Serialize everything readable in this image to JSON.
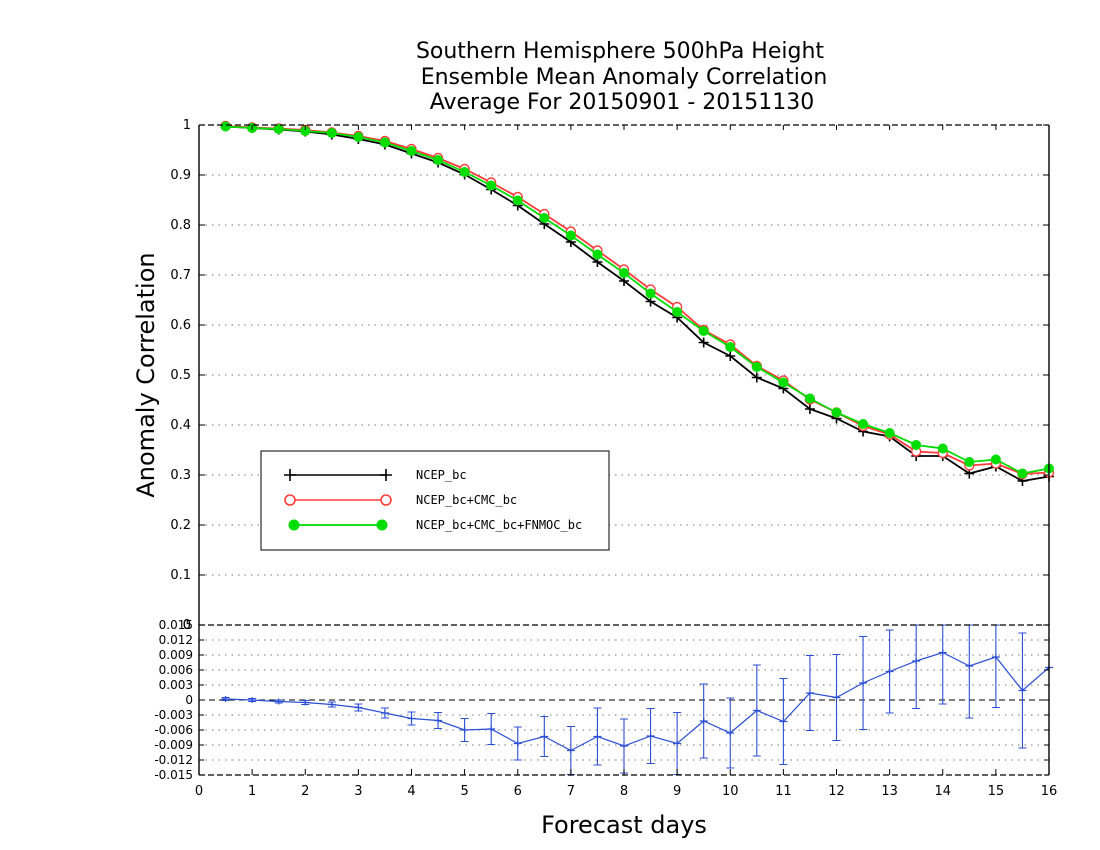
{
  "chart_data": [
    {
      "type": "line",
      "title": [
        "Southern Hemisphere 500hPa Height",
        "Ensemble Mean Anomaly Correlation",
        "Average For 20150901 - 20151130"
      ],
      "ylabel": "Anomaly Correlation",
      "xlim": [
        0,
        16
      ],
      "ylim": [
        0,
        1
      ],
      "y_ticks": [
        "0",
        "0.1",
        "0.2",
        "0.3",
        "0.4",
        "0.5",
        "0.6",
        "0.7",
        "0.8",
        "0.9",
        "1"
      ],
      "grid": "dotted",
      "legend_position": "lower-left",
      "x": [
        0.5,
        1,
        1.5,
        2,
        2.5,
        3,
        3.5,
        4,
        4.5,
        5,
        5.5,
        6,
        6.5,
        7,
        7.5,
        8,
        8.5,
        9,
        9.5,
        10,
        10.5,
        11,
        11.5,
        12,
        12.5,
        13,
        13.5,
        14,
        14.5,
        15,
        15.5,
        16
      ],
      "series": [
        {
          "name": "NCEP_bc",
          "color": "#000000",
          "marker": "plus",
          "values": [
            0.997,
            0.994,
            0.991,
            0.987,
            0.981,
            0.972,
            0.961,
            0.943,
            0.925,
            0.901,
            0.871,
            0.839,
            0.802,
            0.766,
            0.726,
            0.688,
            0.647,
            0.615,
            0.565,
            0.538,
            0.495,
            0.473,
            0.432,
            0.413,
            0.387,
            0.377,
            0.338,
            0.338,
            0.303,
            0.317,
            0.288,
            0.297
          ]
        },
        {
          "name": "NCEP_bc+CMC_bc",
          "color": "#ff3b3b",
          "marker": "open-circle",
          "values": [
            0.998,
            0.995,
            0.993,
            0.99,
            0.985,
            0.978,
            0.968,
            0.952,
            0.934,
            0.912,
            0.885,
            0.856,
            0.822,
            0.787,
            0.749,
            0.711,
            0.671,
            0.636,
            0.59,
            0.561,
            0.518,
            0.489,
            0.451,
            0.425,
            0.398,
            0.381,
            0.347,
            0.344,
            0.319,
            0.323,
            0.302,
            0.305
          ]
        },
        {
          "name": "NCEP_bc+CMC_bc+FNMOC_bc",
          "color": "#00dd00",
          "marker": "filled-circle",
          "values": [
            0.997,
            0.994,
            0.992,
            0.988,
            0.984,
            0.976,
            0.965,
            0.948,
            0.93,
            0.906,
            0.879,
            0.849,
            0.814,
            0.779,
            0.741,
            0.704,
            0.663,
            0.626,
            0.588,
            0.556,
            0.516,
            0.485,
            0.453,
            0.425,
            0.402,
            0.384,
            0.36,
            0.353,
            0.326,
            0.331,
            0.303,
            0.313
          ]
        }
      ]
    },
    {
      "type": "line",
      "xlabel": "Forecast days",
      "xlim": [
        0,
        16
      ],
      "ylim": [
        -0.015,
        0.015
      ],
      "x_ticks": [
        "0",
        "1",
        "2",
        "3",
        "4",
        "5",
        "6",
        "7",
        "8",
        "9",
        "10",
        "11",
        "12",
        "13",
        "14",
        "15",
        "16"
      ],
      "y_ticks": [
        "-0.015",
        "-0.012",
        "-0.009",
        "-0.006",
        "-0.003",
        "0",
        "0.003",
        "0.006",
        "0.009",
        "0.012",
        "0.015"
      ],
      "top_tick": "0",
      "error_bars": true,
      "grid": "dotted",
      "x": [
        0.5,
        1,
        1.5,
        2,
        2.5,
        3,
        3.5,
        4,
        4.5,
        5,
        5.5,
        6,
        6.5,
        7,
        7.5,
        8,
        8.5,
        9,
        9.5,
        10,
        10.5,
        11,
        11.5,
        12,
        12.5,
        13,
        13.5,
        14,
        14.5,
        15,
        15.5,
        16
      ],
      "series": [
        {
          "name": "",
          "color": "#2b4fd6",
          "values": [
            0.0002,
            0.0,
            -0.0003,
            -0.0005,
            -0.0009,
            -0.0015,
            -0.0026,
            -0.0037,
            -0.0041,
            -0.006,
            -0.0058,
            -0.0087,
            -0.0073,
            -0.0101,
            -0.0073,
            -0.0092,
            -0.0072,
            -0.0087,
            -0.0042,
            -0.0066,
            -0.0021,
            -0.0043,
            0.0014,
            0.0005,
            0.0034,
            0.0057,
            0.0078,
            0.0095,
            0.0068,
            0.0086,
            0.0019,
            0.0065
          ],
          "errors": [
            0.0003,
            0.0003,
            0.0003,
            0.0004,
            0.0005,
            0.0007,
            0.001,
            0.0013,
            0.0016,
            0.0023,
            0.0031,
            0.0033,
            0.004,
            0.0048,
            0.0057,
            0.0054,
            0.0055,
            0.0062,
            0.0074,
            0.007,
            0.0091,
            0.0086,
            0.0075,
            0.0086,
            0.0093,
            0.0083,
            0.0095,
            0.0103,
            0.0104,
            0.0101,
            0.0115,
            0.0
          ]
        }
      ]
    }
  ]
}
